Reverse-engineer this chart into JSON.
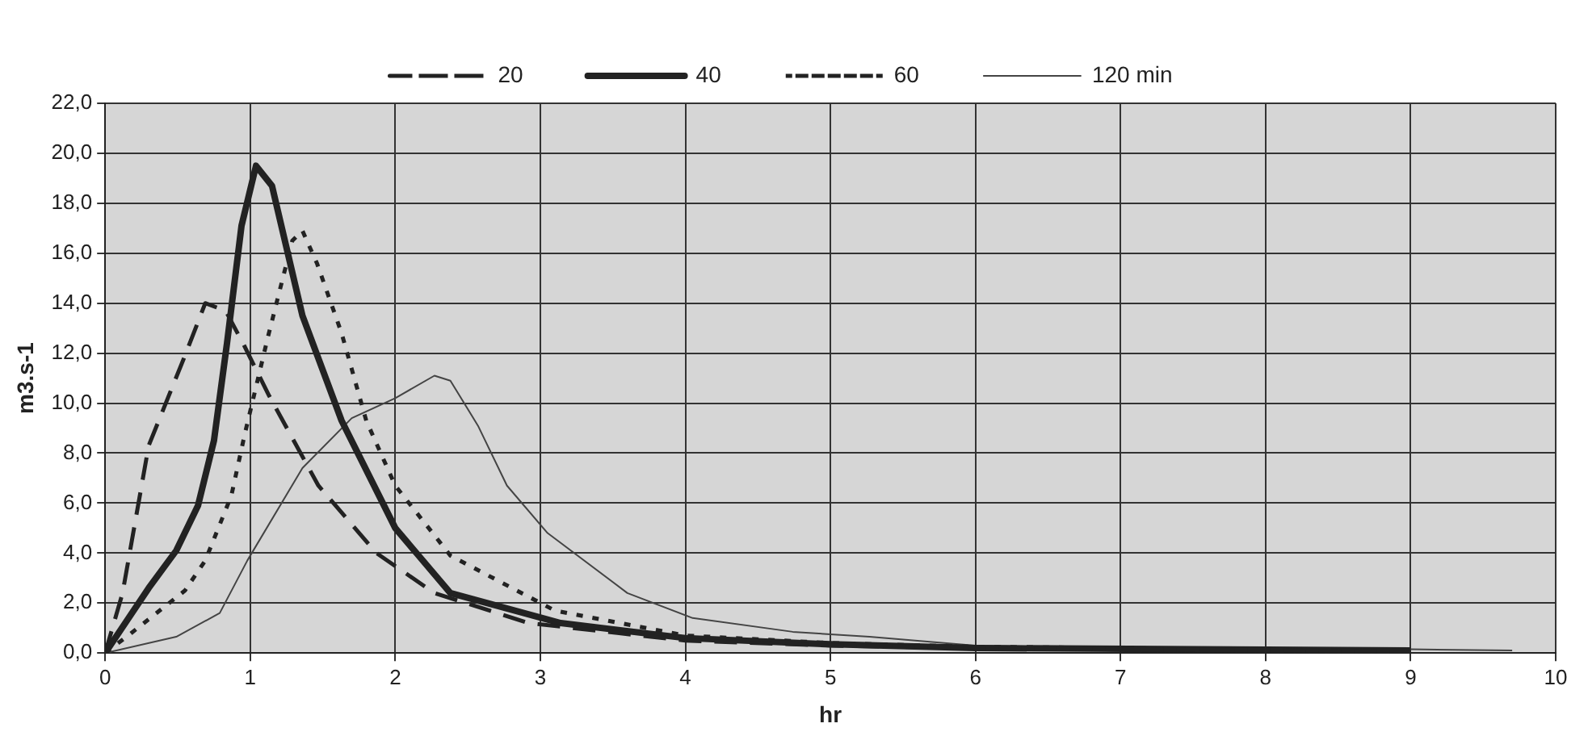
{
  "chart_data": {
    "type": "line",
    "xlabel": "hr",
    "ylabel": "m3.s-1",
    "xlim": [
      0,
      10
    ],
    "ylim": [
      0,
      22
    ],
    "xticks": [
      0,
      1,
      2,
      3,
      4,
      5,
      6,
      7,
      8,
      9,
      10
    ],
    "yticks": [
      {
        "value": 0,
        "label": "0,0"
      },
      {
        "value": 2,
        "label": "2,0"
      },
      {
        "value": 4,
        "label": "4,0"
      },
      {
        "value": 6,
        "label": "6,0"
      },
      {
        "value": 8,
        "label": "8,0"
      },
      {
        "value": 10,
        "label": "10,0"
      },
      {
        "value": 12,
        "label": "12,0"
      },
      {
        "value": 14,
        "label": "14,0"
      },
      {
        "value": 16,
        "label": "16,0"
      },
      {
        "value": 18,
        "label": "18,0"
      },
      {
        "value": 20,
        "label": "20,0"
      },
      {
        "value": 22,
        "label": "22,0"
      }
    ],
    "grid": true,
    "legend": "top",
    "marker": "none",
    "series": [
      {
        "name": "20",
        "color": "#222222",
        "line_style": "dashed",
        "x": [
          0,
          0.12,
          0.3,
          0.55,
          0.69,
          0.83,
          0.95,
          1.13,
          1.47,
          1.87,
          2.27,
          2.92,
          4,
          5,
          6,
          8,
          9
        ],
        "values": [
          0,
          2.4,
          8.3,
          11.9,
          14,
          13.7,
          12.4,
          10.3,
          6.7,
          4,
          2.4,
          1.2,
          0.5,
          0.3,
          0.2,
          0.1,
          0.05
        ]
      },
      {
        "name": "40",
        "color": "#222222",
        "line_style": "solid",
        "x": [
          0,
          0.3,
          0.49,
          0.64,
          0.75,
          0.84,
          0.94,
          1.04,
          1.15,
          1.36,
          1.63,
          2,
          2.38,
          3.14,
          4,
          5,
          6,
          9
        ],
        "values": [
          0,
          2.6,
          4.1,
          5.9,
          8.5,
          12.4,
          17.1,
          19.5,
          18.7,
          13.5,
          9.3,
          5,
          2.4,
          1.2,
          0.6,
          0.35,
          0.2,
          0.1
        ]
      },
      {
        "name": "60",
        "color": "#222222",
        "line_style": "dotted",
        "x": [
          0,
          0.18,
          0.55,
          0.69,
          0.87,
          0.96,
          1.12,
          1.29,
          1.36,
          1.46,
          1.63,
          1.8,
          2,
          2.38,
          3.1,
          4,
          5,
          6,
          9
        ],
        "values": [
          0,
          0.8,
          2.5,
          3.7,
          6.3,
          8.7,
          12.6,
          16.5,
          16.9,
          15.6,
          12.8,
          9.3,
          6.7,
          3.9,
          1.7,
          0.7,
          0.4,
          0.25,
          0.1
        ]
      },
      {
        "name": "120 min",
        "color": "#444444",
        "line_style": "solid",
        "x": [
          0,
          0.49,
          0.79,
          0.98,
          1.36,
          1.7,
          2,
          2.27,
          2.38,
          2.57,
          2.77,
          3.05,
          3.6,
          4.05,
          4.74,
          5.27,
          6,
          7,
          9,
          9.7
        ],
        "values": [
          0,
          0.65,
          1.6,
          3.7,
          7.4,
          9.4,
          10.2,
          11.1,
          10.9,
          9.1,
          6.7,
          4.8,
          2.4,
          1.4,
          0.85,
          0.65,
          0.3,
          0.2,
          0.15,
          0.1
        ]
      }
    ]
  }
}
